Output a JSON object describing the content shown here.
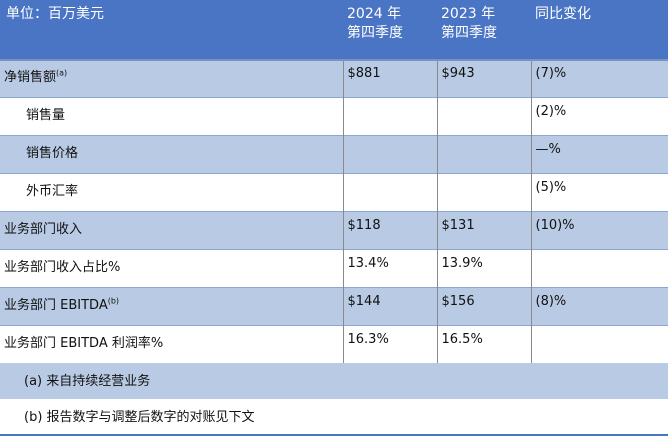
{
  "header": {
    "unit": "单位：百万美元",
    "col2": {
      "year": "2024 年",
      "quarter": "第四季度"
    },
    "col3": {
      "year": "2023 年",
      "quarter": "第四季度"
    },
    "col4": "同比变化"
  },
  "rows": [
    {
      "label": "净销售额",
      "note": "(a)",
      "v2024": "$881",
      "v2023": "$943",
      "change": "(7)%"
    },
    {
      "label": "销售量",
      "v2024": "",
      "v2023": "",
      "change": "(2)%"
    },
    {
      "label": "销售价格",
      "v2024": "",
      "v2023": "",
      "change": "—%"
    },
    {
      "label": "外币汇率",
      "v2024": "",
      "v2023": "",
      "change": "(5)%"
    },
    {
      "label": "业务部门收入",
      "v2024": "$118",
      "v2023": "$131",
      "change": "(10)%"
    },
    {
      "label": "业务部门收入占比%",
      "v2024": "13.4%",
      "v2023": "13.9%",
      "change": ""
    },
    {
      "label": "业务部门 EBITDA",
      "note": "(b)",
      "v2024": "$144",
      "v2023": "$156",
      "change": "(8)%"
    },
    {
      "label": "业务部门 EBITDA 利润率%",
      "v2024": "16.3%",
      "v2023": "16.5%",
      "change": ""
    }
  ],
  "footnotes": {
    "a": "(a) 来自持续经营业务",
    "b": "(b) 报告数字与调整后数字的对账见下文"
  }
}
